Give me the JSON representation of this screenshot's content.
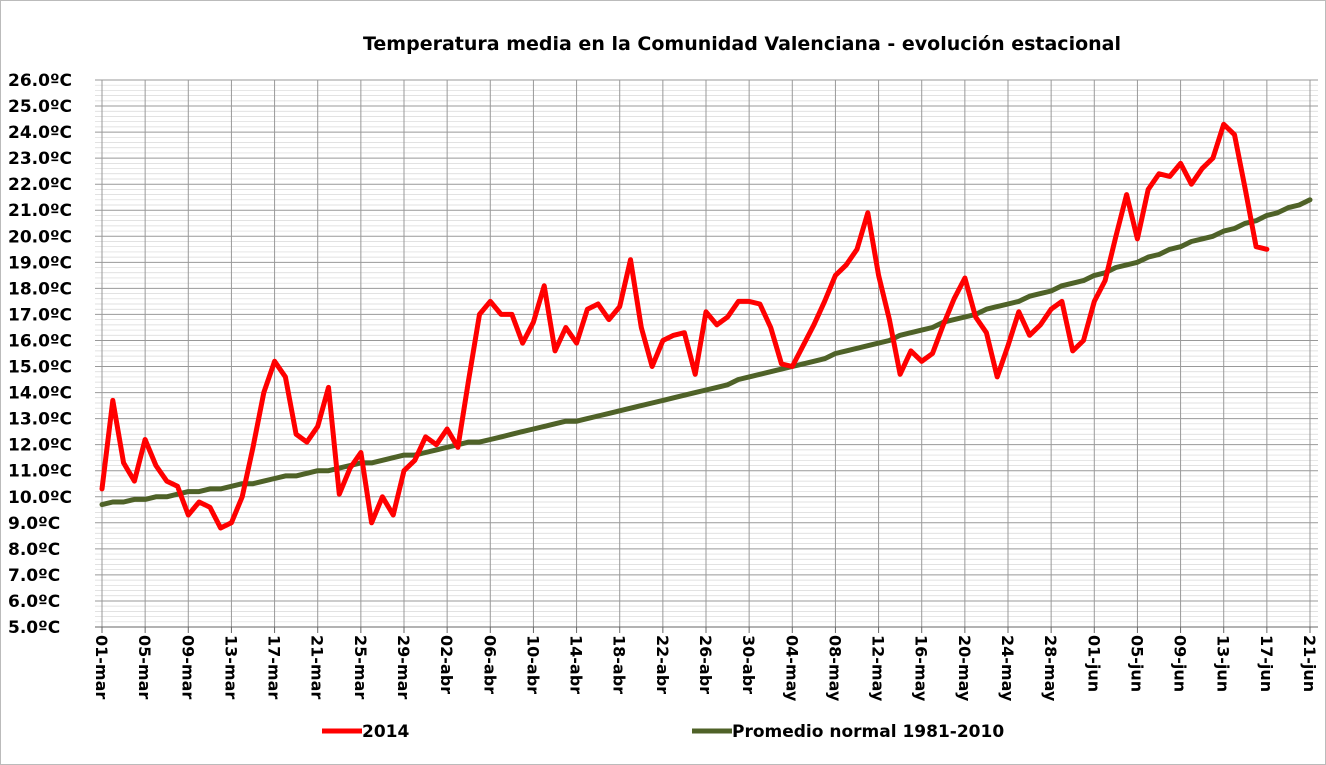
{
  "chart_data": {
    "type": "line",
    "title": "Temperatura media en la Comunidad Valenciana - evolución estacional",
    "categories": [
      "01-mar",
      null,
      null,
      null,
      "05-mar",
      null,
      null,
      null,
      "09-mar",
      null,
      null,
      null,
      "13-mar",
      null,
      null,
      null,
      "17-mar",
      null,
      null,
      null,
      "21-mar",
      null,
      null,
      null,
      "25-mar",
      null,
      null,
      null,
      "29-mar",
      null,
      null,
      null,
      "02-abr",
      null,
      null,
      null,
      "06-abr",
      null,
      null,
      null,
      "10-abr",
      null,
      null,
      null,
      "14-abr",
      null,
      null,
      null,
      "18-abr",
      null,
      null,
      null,
      "22-abr",
      null,
      null,
      null,
      "26-abr",
      null,
      null,
      null,
      "30-abr",
      null,
      null,
      null,
      "04-may",
      null,
      null,
      null,
      "08-may",
      null,
      null,
      null,
      "12-may",
      null,
      null,
      null,
      "16-may",
      null,
      null,
      null,
      "20-may",
      null,
      null,
      null,
      "24-may",
      null,
      null,
      null,
      "28-may",
      null,
      null,
      null,
      "01-jun",
      null,
      null,
      null,
      "05-jun",
      null,
      null,
      null,
      "09-jun",
      null,
      null,
      null,
      "13-jun",
      null,
      null,
      null,
      "17-jun",
      null,
      null,
      null,
      "21-jun"
    ],
    "series": [
      {
        "name": "2014",
        "color": "#ff0000",
        "values": [
          10.3,
          13.7,
          11.3,
          10.6,
          12.2,
          11.2,
          10.6,
          10.4,
          9.3,
          9.8,
          9.6,
          8.8,
          9.0,
          10.0,
          11.9,
          14.0,
          15.2,
          14.6,
          12.4,
          12.1,
          12.7,
          14.2,
          10.1,
          11.1,
          11.7,
          9.0,
          10.0,
          9.3,
          11.0,
          11.4,
          12.3,
          12.0,
          12.6,
          11.9,
          14.5,
          17.0,
          17.5,
          17.0,
          17.0,
          15.9,
          16.7,
          18.1,
          15.6,
          16.5,
          15.9,
          17.2,
          17.4,
          16.8,
          17.3,
          19.1,
          16.5,
          15.0,
          16.0,
          16.2,
          16.3,
          14.7,
          17.1,
          16.6,
          16.9,
          17.5,
          17.5,
          17.4,
          16.5,
          15.1,
          15.0,
          15.8,
          16.6,
          17.5,
          18.5,
          18.9,
          19.5,
          20.9,
          18.5,
          16.8,
          14.7,
          15.6,
          15.2,
          15.5,
          16.6,
          17.6,
          18.4,
          16.9,
          16.3,
          14.6,
          15.8,
          17.1,
          16.2,
          16.6,
          17.2,
          17.5,
          15.6,
          16.0,
          17.5,
          18.3,
          20.0,
          21.6,
          19.9,
          21.8,
          22.4,
          22.3,
          22.8,
          22.0,
          22.6,
          23.0,
          24.3,
          23.9,
          21.8,
          19.6,
          19.5,
          null,
          null,
          null,
          null
        ]
      },
      {
        "name": "Promedio normal 1981-2010",
        "color": "#4f6228",
        "values": [
          9.7,
          9.8,
          9.8,
          9.9,
          9.9,
          10.0,
          10.0,
          10.1,
          10.2,
          10.2,
          10.3,
          10.3,
          10.4,
          10.5,
          10.5,
          10.6,
          10.7,
          10.8,
          10.8,
          10.9,
          11.0,
          11.0,
          11.1,
          11.2,
          11.3,
          11.3,
          11.4,
          11.5,
          11.6,
          11.6,
          11.7,
          11.8,
          11.9,
          12.0,
          12.1,
          12.1,
          12.2,
          12.3,
          12.4,
          12.5,
          12.6,
          12.7,
          12.8,
          12.9,
          12.9,
          13.0,
          13.1,
          13.2,
          13.3,
          13.4,
          13.5,
          13.6,
          13.7,
          13.8,
          13.9,
          14.0,
          14.1,
          14.2,
          14.3,
          14.5,
          14.6,
          14.7,
          14.8,
          14.9,
          15.0,
          15.1,
          15.2,
          15.3,
          15.5,
          15.6,
          15.7,
          15.8,
          15.9,
          16.0,
          16.2,
          16.3,
          16.4,
          16.5,
          16.7,
          16.8,
          16.9,
          17.0,
          17.2,
          17.3,
          17.4,
          17.5,
          17.7,
          17.8,
          17.9,
          18.1,
          18.2,
          18.3,
          18.5,
          18.6,
          18.8,
          18.9,
          19.0,
          19.2,
          19.3,
          19.5,
          19.6,
          19.8,
          19.9,
          20.0,
          20.2,
          20.3,
          20.5,
          20.6,
          20.8,
          20.9,
          21.1,
          21.2,
          21.4
        ]
      }
    ],
    "ylim": [
      5,
      26
    ],
    "yticks": [
      {
        "value": 5,
        "label": "5.0ºC"
      },
      {
        "value": 6,
        "label": "6.0ºC"
      },
      {
        "value": 7,
        "label": "7.0ºC"
      },
      {
        "value": 8,
        "label": "8.0ºC"
      },
      {
        "value": 9,
        "label": "9.0ºC"
      },
      {
        "value": 10,
        "label": "10.0ºC"
      },
      {
        "value": 11,
        "label": "11.0ºC"
      },
      {
        "value": 12,
        "label": "12.0ºC"
      },
      {
        "value": 13,
        "label": "13.0ºC"
      },
      {
        "value": 14,
        "label": "14.0ºC"
      },
      {
        "value": 15,
        "label": "15.0ºC"
      },
      {
        "value": 16,
        "label": "16.0ºC"
      },
      {
        "value": 17,
        "label": "17.0ºC"
      },
      {
        "value": 18,
        "label": "18.0ºC"
      },
      {
        "value": 19,
        "label": "19.0ºC"
      },
      {
        "value": 20,
        "label": "20.0ºC"
      },
      {
        "value": 21,
        "label": "21.0ºC"
      },
      {
        "value": 22,
        "label": "22.0ºC"
      },
      {
        "value": 23,
        "label": "23.0ºC"
      },
      {
        "value": 24,
        "label": "24.0ºC"
      },
      {
        "value": 25,
        "label": "25.0ºC"
      },
      {
        "value": 26,
        "label": "26.0ºC"
      }
    ],
    "grid": true,
    "legend": "bottom"
  }
}
